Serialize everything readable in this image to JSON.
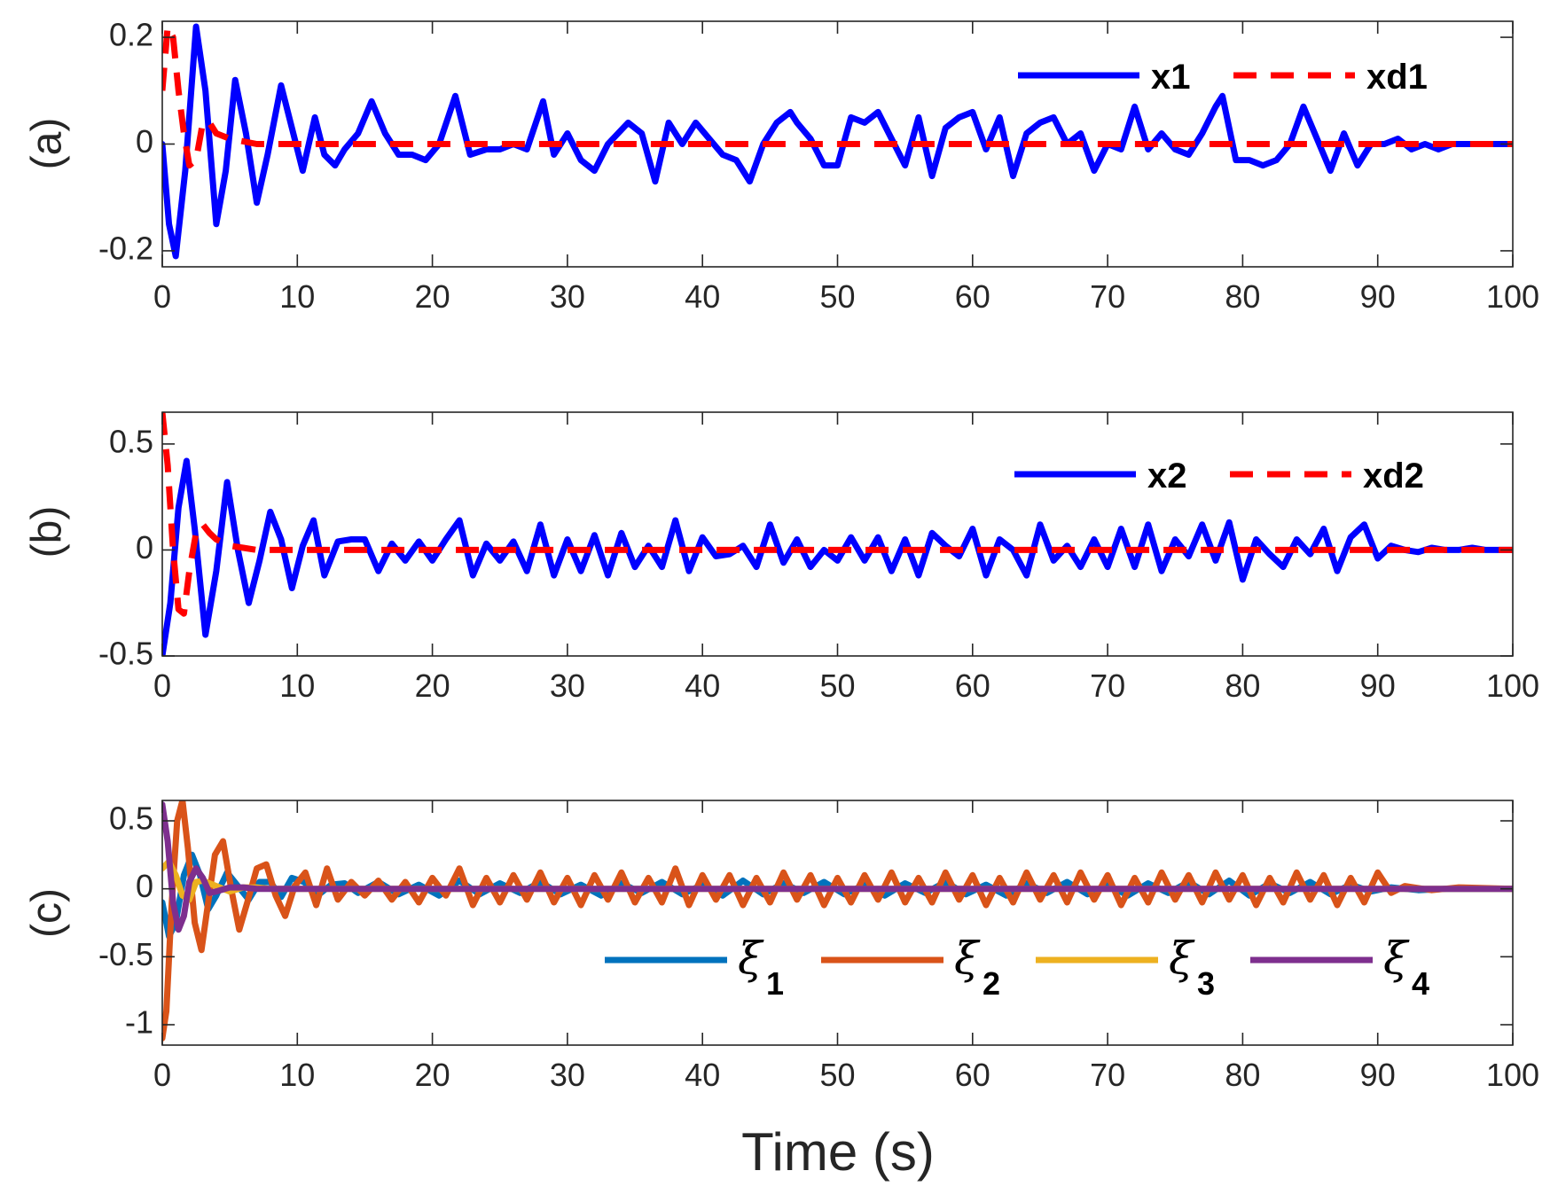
{
  "chart_data": [
    {
      "id": "a",
      "type": "line",
      "ylabel": "(a)",
      "xlabel": "",
      "xlim": [
        0,
        100
      ],
      "ylim": [
        -0.23,
        0.23
      ],
      "xticks": [
        0,
        10,
        20,
        30,
        40,
        50,
        60,
        70,
        80,
        90,
        100
      ],
      "xtick_labels": [
        "0",
        "10",
        "20",
        "30",
        "40",
        "50",
        "60",
        "70",
        "80",
        "90",
        "100"
      ],
      "yticks": [
        -0.2,
        0,
        0.2
      ],
      "ytick_labels": [
        "-0.2",
        "0",
        "0.2"
      ],
      "legend_position": "top-right",
      "series": [
        {
          "name": "x1",
          "legend_label": "x1",
          "color": "#0000FF",
          "style": "solid",
          "x": [
            0,
            0.5,
            1,
            1.7,
            2.5,
            3.2,
            4,
            4.7,
            5.4,
            6.2,
            7,
            7.8,
            8.8,
            9.6,
            10.4,
            11.3,
            12,
            12.8,
            13.5,
            14.5,
            15.5,
            16.5,
            17.5,
            18.5,
            19.5,
            20.5,
            21.7,
            22.8,
            24,
            25,
            26,
            27,
            28.2,
            29,
            30,
            31,
            32,
            33,
            34.5,
            35.5,
            36.5,
            37.5,
            38.5,
            39.5,
            40.5,
            41.5,
            42.5,
            43.5,
            44.5,
            45.5,
            46.5,
            47,
            48,
            49,
            50,
            51,
            52,
            53,
            54,
            55,
            56,
            57,
            58,
            59,
            60,
            61,
            62,
            63,
            64,
            65,
            66,
            67,
            68,
            69,
            70,
            71,
            72,
            73,
            74,
            75,
            76,
            77,
            78,
            78.5,
            79.5,
            80.5,
            81.5,
            82.5,
            83.5,
            84.5,
            85.5,
            86.5,
            87.5,
            88.5,
            89.5,
            90.5,
            91.5,
            92.5,
            93.5,
            94.5,
            95.5,
            96.5,
            97.5,
            98.5,
            100
          ],
          "y": [
            0,
            -0.15,
            -0.21,
            -0.05,
            0.22,
            0.1,
            -0.15,
            -0.05,
            0.12,
            0.02,
            -0.11,
            -0.02,
            0.11,
            0.03,
            -0.05,
            0.05,
            -0.02,
            -0.04,
            -0.01,
            0.02,
            0.08,
            0.02,
            -0.02,
            -0.02,
            -0.03,
            0,
            0.09,
            -0.02,
            -0.01,
            -0.01,
            0,
            -0.01,
            0.08,
            -0.02,
            0.02,
            -0.03,
            -0.05,
            0,
            0.04,
            0.02,
            -0.07,
            0.04,
            0,
            0.04,
            0.01,
            -0.02,
            -0.03,
            -0.07,
            0,
            0.04,
            0.06,
            0.04,
            0.01,
            -0.04,
            -0.04,
            0.05,
            0.04,
            0.06,
            0.01,
            -0.04,
            0.05,
            -0.06,
            0.03,
            0.05,
            0.06,
            -0.01,
            0.05,
            -0.06,
            0.02,
            0.04,
            0.05,
            0,
            0.02,
            -0.05,
            0,
            -0.01,
            0.07,
            -0.01,
            0.02,
            -0.01,
            -0.02,
            0.02,
            0.07,
            0.09,
            -0.03,
            -0.03,
            -0.04,
            -0.03,
            0,
            0.07,
            0.01,
            -0.05,
            0.02,
            -0.04,
            0,
            0,
            0.01,
            -0.01,
            0,
            -0.01,
            0,
            0,
            0,
            0,
            0
          ]
        },
        {
          "name": "xd1",
          "legend_label": "xd1",
          "color": "#FF0000",
          "style": "dashed",
          "x": [
            0,
            0.4,
            0.8,
            1.2,
            1.6,
            2,
            2.5,
            3,
            3.5,
            4,
            5,
            6,
            7,
            8,
            100
          ],
          "y": [
            0.1,
            0.22,
            0.2,
            0.1,
            0.02,
            -0.04,
            -0.03,
            0.04,
            0.04,
            0.02,
            0.01,
            0.005,
            0,
            0,
            0
          ]
        }
      ]
    },
    {
      "id": "b",
      "type": "line",
      "ylabel": "(b)",
      "xlabel": "",
      "xlim": [
        0,
        100
      ],
      "ylim": [
        -0.5,
        0.65
      ],
      "xticks": [
        0,
        10,
        20,
        30,
        40,
        50,
        60,
        70,
        80,
        90,
        100
      ],
      "xtick_labels": [
        "0",
        "10",
        "20",
        "30",
        "40",
        "50",
        "60",
        "70",
        "80",
        "90",
        "100"
      ],
      "yticks": [
        -0.5,
        0,
        0.5
      ],
      "ytick_labels": [
        "-0.5",
        "0",
        "0.5"
      ],
      "legend_position": "top-right",
      "series": [
        {
          "name": "x2",
          "legend_label": "x2",
          "color": "#0000FF",
          "style": "solid",
          "x": [
            0,
            0.6,
            1.2,
            1.8,
            2.4,
            3.2,
            4,
            4.8,
            5.6,
            6.4,
            7.2,
            8,
            8.8,
            9.6,
            10.4,
            11.2,
            12,
            13,
            14,
            15,
            16,
            17,
            18,
            19,
            20,
            21,
            22,
            23,
            24,
            25,
            26,
            27,
            28,
            29,
            30,
            31,
            32,
            33,
            34,
            35,
            36,
            37,
            38,
            39,
            40,
            41,
            42,
            43,
            44,
            45,
            46,
            47,
            48,
            49,
            50,
            51,
            52,
            53,
            54,
            55,
            56,
            57,
            58,
            59,
            60,
            61,
            62,
            63,
            64,
            65,
            66,
            67,
            68,
            69,
            70,
            71,
            72,
            73,
            74,
            75,
            76,
            77,
            78,
            79,
            80,
            81,
            82,
            83,
            84,
            85,
            86,
            87,
            88,
            89,
            90,
            91,
            92,
            93,
            94,
            95,
            96,
            97,
            98,
            100
          ],
          "y": [
            -0.5,
            -0.25,
            0.2,
            0.42,
            0.1,
            -0.4,
            -0.1,
            0.32,
            0,
            -0.25,
            -0.05,
            0.18,
            0.05,
            -0.18,
            0.02,
            0.14,
            -0.12,
            0.04,
            0.05,
            0.05,
            -0.1,
            0.03,
            -0.05,
            0.04,
            -0.05,
            0.05,
            0.14,
            -0.12,
            0.03,
            -0.05,
            0.04,
            -0.1,
            0.12,
            -0.12,
            0.05,
            -0.1,
            0.07,
            -0.12,
            0.08,
            -0.08,
            0.02,
            -0.08,
            0.14,
            -0.1,
            0.06,
            -0.03,
            -0.02,
            0.02,
            -0.08,
            0.12,
            -0.06,
            0.05,
            -0.08,
            0,
            -0.05,
            0.06,
            -0.05,
            0.06,
            -0.1,
            0.05,
            -0.12,
            0.08,
            0.02,
            -0.03,
            0.1,
            -0.12,
            0.05,
            0,
            -0.12,
            0.12,
            -0.05,
            0.02,
            -0.08,
            0.05,
            -0.08,
            0.1,
            -0.08,
            0.12,
            -0.1,
            0.05,
            -0.03,
            0.12,
            -0.05,
            0.13,
            -0.14,
            0.05,
            -0.02,
            -0.08,
            0.05,
            -0.02,
            0.1,
            -0.1,
            0.06,
            0.12,
            -0.04,
            0.02,
            0,
            -0.01,
            0.01,
            0,
            0,
            0.01,
            0,
            0
          ]
        },
        {
          "name": "xd2",
          "legend_label": "xd2",
          "color": "#FF0000",
          "style": "dashed",
          "x": [
            0,
            0.4,
            0.8,
            1.2,
            1.6,
            2,
            2.5,
            3,
            3.5,
            4,
            5,
            6,
            7,
            8,
            100
          ],
          "y": [
            0.65,
            0.4,
            0,
            -0.28,
            -0.3,
            -0.1,
            0.08,
            0.12,
            0.08,
            0.05,
            0.02,
            0.01,
            0,
            0,
            0
          ]
        }
      ]
    },
    {
      "id": "c",
      "type": "line",
      "ylabel": "(c)",
      "xlabel": "Time (s)",
      "xlim": [
        0,
        100
      ],
      "ylim": [
        -1.15,
        0.65
      ],
      "xticks": [
        0,
        10,
        20,
        30,
        40,
        50,
        60,
        70,
        80,
        90,
        100
      ],
      "xtick_labels": [
        "0",
        "10",
        "20",
        "30",
        "40",
        "50",
        "60",
        "70",
        "80",
        "90",
        "100"
      ],
      "yticks": [
        -1,
        -0.5,
        0,
        0.5
      ],
      "ytick_labels": [
        "-1",
        "-0.5",
        "0",
        "0.5"
      ],
      "legend_position": "lower-right",
      "series": [
        {
          "name": "xi1",
          "legend_symbol": "ξ",
          "legend_sub": "1",
          "color": "#0072BD",
          "style": "solid",
          "x": [
            0,
            0.5,
            1,
            1.6,
            2.2,
            2.8,
            3.4,
            4,
            4.8,
            5.6,
            6.4,
            7.2,
            8,
            8.8,
            9.6,
            10.5,
            11.5,
            12.5,
            13.5,
            14.5,
            16,
            17.5,
            19,
            20.5,
            22,
            23.5,
            25,
            26.5,
            28,
            29.5,
            31,
            32.5,
            34,
            35.5,
            37,
            38.5,
            40,
            41.5,
            43,
            44.5,
            46,
            47.5,
            49,
            50.5,
            52,
            53.5,
            55,
            56.5,
            58,
            59.5,
            61,
            62.5,
            64,
            65.5,
            67,
            68.5,
            70,
            71.5,
            73,
            74.5,
            76,
            77.5,
            79,
            80.5,
            82,
            83.5,
            85,
            86.5,
            88,
            89.5,
            91,
            93,
            95,
            100
          ],
          "y": [
            -0.1,
            -0.35,
            -0.25,
            0.1,
            0.25,
            0.1,
            -0.15,
            -0.05,
            0.12,
            0.02,
            -0.08,
            0.05,
            0.05,
            -0.06,
            0.08,
            0.05,
            -0.05,
            0.03,
            0.04,
            -0.03,
            0.05,
            -0.04,
            0.03,
            -0.05,
            0.06,
            -0.04,
            0.04,
            -0.03,
            0.05,
            -0.04,
            0.03,
            -0.05,
            0.04,
            -0.03,
            0.05,
            -0.04,
            0.03,
            -0.05,
            0.06,
            -0.04,
            0.04,
            -0.03,
            0.05,
            -0.04,
            0.03,
            -0.05,
            0.04,
            -0.03,
            0.05,
            -0.04,
            0.03,
            -0.05,
            0.04,
            -0.03,
            0.05,
            -0.04,
            0.03,
            -0.05,
            0.04,
            -0.03,
            0.05,
            -0.04,
            0.06,
            -0.05,
            0.04,
            -0.03,
            0.05,
            -0.04,
            0.03,
            -0.02,
            0.01,
            -0.01,
            0,
            0
          ]
        },
        {
          "name": "xi2",
          "legend_symbol": "ξ",
          "legend_sub": "2",
          "color": "#D95319",
          "style": "solid",
          "x": [
            0,
            0.3,
            0.7,
            1.1,
            1.5,
            1.9,
            2.4,
            2.9,
            3.4,
            3.9,
            4.5,
            5.1,
            5.7,
            6.3,
            7,
            7.7,
            8.4,
            9.1,
            9.8,
            10.6,
            11.4,
            12.2,
            13,
            14,
            15,
            16,
            17,
            18,
            19,
            20,
            21,
            22,
            23,
            24,
            25,
            26,
            27,
            28,
            29,
            30,
            31,
            32,
            33,
            34,
            35,
            36,
            37,
            38,
            39,
            40,
            41,
            42,
            43,
            44,
            45,
            46,
            47,
            48,
            49,
            50,
            51,
            52,
            53,
            54,
            55,
            56,
            57,
            58,
            59,
            60,
            61,
            62,
            63,
            64,
            65,
            66,
            67,
            68,
            69,
            70,
            71,
            72,
            73,
            74,
            75,
            76,
            77,
            78,
            79,
            80,
            81,
            82,
            83,
            84,
            85,
            86,
            87,
            88,
            89,
            90,
            91,
            92,
            94,
            96,
            100
          ],
          "y": [
            -1.1,
            -0.9,
            -0.1,
            0.5,
            0.65,
            0.3,
            -0.25,
            -0.45,
            -0.1,
            0.25,
            0.35,
            0,
            -0.3,
            -0.1,
            0.15,
            0.18,
            -0.05,
            -0.2,
            0.02,
            0.12,
            -0.12,
            0.15,
            -0.08,
            0.05,
            -0.05,
            0.06,
            -0.08,
            0.05,
            -0.1,
            0.08,
            -0.05,
            0.15,
            -0.12,
            0.08,
            -0.1,
            0.1,
            -0.08,
            0.12,
            -0.1,
            0.08,
            -0.12,
            0.1,
            -0.08,
            0.12,
            -0.1,
            0.08,
            -0.1,
            0.15,
            -0.12,
            0.1,
            -0.08,
            0.1,
            -0.12,
            0.08,
            -0.1,
            0.12,
            -0.08,
            0.1,
            -0.12,
            0.08,
            -0.1,
            0.1,
            -0.08,
            0.12,
            -0.1,
            0.08,
            -0.1,
            0.12,
            -0.08,
            0.1,
            -0.12,
            0.08,
            -0.1,
            0.12,
            -0.08,
            0.1,
            -0.1,
            0.12,
            -0.08,
            0.1,
            -0.12,
            0.08,
            -0.1,
            0.12,
            -0.08,
            0.1,
            -0.1,
            0.12,
            -0.08,
            0.1,
            -0.12,
            0.08,
            -0.1,
            0.12,
            -0.08,
            0.1,
            -0.12,
            0.08,
            -0.1,
            0.12,
            -0.03,
            0.02,
            -0.01,
            0.01,
            0
          ]
        },
        {
          "name": "xi3",
          "legend_symbol": "ξ",
          "legend_sub": "3",
          "color": "#EDB120",
          "style": "solid",
          "x": [
            0,
            0.5,
            1,
            1.5,
            2,
            2.5,
            3,
            4,
            5,
            6,
            7,
            8,
            9,
            10,
            100
          ],
          "y": [
            0.15,
            0.2,
            0.1,
            -0.05,
            -0.08,
            0.05,
            0.06,
            0.02,
            -0.02,
            0.01,
            0.01,
            0,
            0,
            0,
            0
          ]
        },
        {
          "name": "xi4",
          "legend_symbol": "ξ",
          "legend_sub": "4",
          "color": "#7E2F8E",
          "style": "solid",
          "x": [
            0,
            0.4,
            0.8,
            1.2,
            1.6,
            2,
            2.5,
            3,
            3.5,
            4,
            5,
            6,
            7,
            8,
            9,
            10,
            100
          ],
          "y": [
            0.62,
            0.35,
            -0.1,
            -0.3,
            -0.2,
            0.05,
            0.15,
            0.08,
            -0.03,
            -0.02,
            0.01,
            0.01,
            0,
            0,
            0,
            0,
            0
          ]
        }
      ]
    }
  ]
}
